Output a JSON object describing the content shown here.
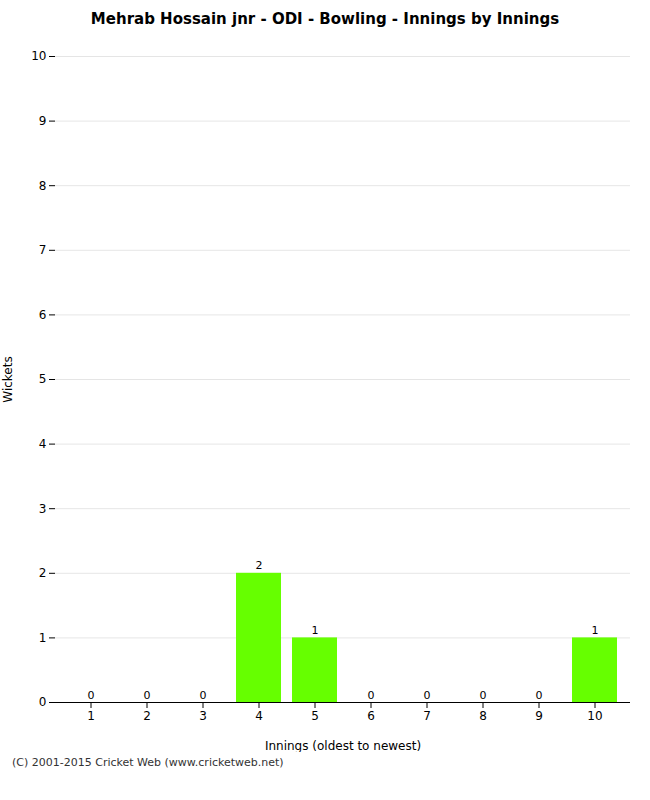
{
  "chart_data": {
    "type": "bar",
    "title": "Mehrab Hossain jnr - ODI - Bowling - Innings by Innings",
    "xlabel": "Innings (oldest to newest)",
    "ylabel": "Wickets",
    "categories": [
      "1",
      "2",
      "3",
      "4",
      "5",
      "6",
      "7",
      "8",
      "9",
      "10"
    ],
    "values": [
      0,
      0,
      0,
      2,
      1,
      0,
      0,
      0,
      0,
      1
    ],
    "color": "#66ff00",
    "ylim": [
      0,
      10
    ],
    "yticks": [
      0,
      1,
      2,
      3,
      4,
      5,
      6,
      7,
      8,
      9,
      10
    ],
    "grid": true,
    "data_labels": true,
    "caption": "(C) 2001-2015 Cricket Web (www.cricketweb.net)"
  }
}
